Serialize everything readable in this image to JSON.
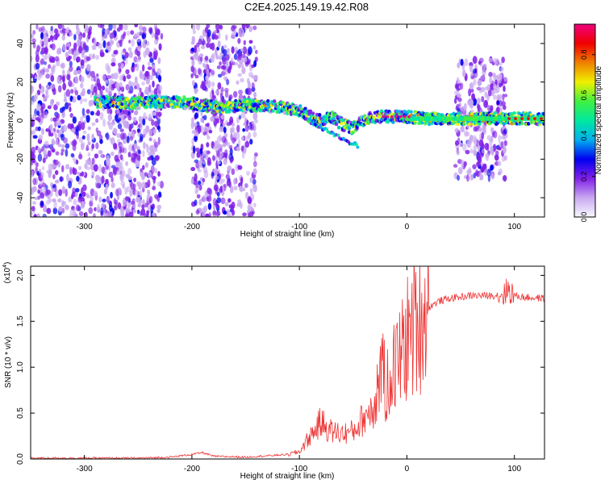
{
  "title": "C2E4.2025.149.19.42.R08",
  "chart_data": [
    {
      "type": "heatmap",
      "xlabel": "Height of straight line (km)",
      "ylabel": "Frequency (Hz)",
      "xlim": [
        -350,
        128
      ],
      "ylim": [
        -50,
        50
      ],
      "xticks": [
        -300,
        -200,
        -100,
        0,
        100
      ],
      "yticks": [
        -40,
        -20,
        0,
        20,
        40
      ],
      "colorbar": {
        "label": "Normalized spectral amplitude",
        "range": [
          0,
          0.95
        ],
        "ticks": [
          "0.0",
          "0.2",
          "0.4",
          "0.6",
          "0.8"
        ],
        "colormap": [
          "#f8f8ff",
          "#c8a8f0",
          "#8020e8",
          "#0000f0",
          "#00b0f0",
          "#00e8a0",
          "#40f040",
          "#f0f000",
          "#f08000",
          "#f00000",
          "#f00080"
        ]
      },
      "carrier_trace": {
        "x": [
          -290,
          -260,
          -230,
          -200,
          -180,
          -150,
          -120,
          -100,
          -90,
          -80,
          -70,
          -60,
          -50,
          -40,
          -30,
          -20,
          -10,
          0,
          20,
          50,
          90,
          128
        ],
        "y": [
          10,
          9,
          10,
          9,
          7,
          8,
          7,
          5,
          2,
          0,
          2,
          -2,
          -4,
          0,
          2,
          2,
          2,
          2,
          1,
          1,
          1,
          1
        ]
      },
      "secondary_trace": {
        "x": [
          -95,
          -85,
          -75,
          -65,
          -55,
          -45
        ],
        "y": [
          1,
          -2,
          -5,
          -8,
          -11,
          -13
        ]
      },
      "noise_regions": [
        [
          -350,
          -228
        ],
        [
          -200,
          -140
        ],
        [
          45,
          92
        ]
      ]
    },
    {
      "type": "line",
      "xlabel": "Height of straight line (km)",
      "ylabel": "SNR (10 * v/v)",
      "yscale_note": "(x10^4)",
      "color": "#ee3333",
      "xlim": [
        -350,
        128
      ],
      "ylim": [
        0,
        2.1
      ],
      "xticks": [
        -300,
        -200,
        -100,
        0,
        100
      ],
      "yticks": [
        "0.0",
        "0.5",
        "1.0",
        "1.5",
        "2.0"
      ],
      "series": [
        {
          "x": [
            -350,
            -300,
            -250,
            -220,
            -200,
            -190,
            -180,
            -150,
            -110,
            -100,
            -90,
            -80,
            -70,
            -60,
            -50,
            -40,
            -30,
            -25,
            -20,
            -15,
            -10,
            -5,
            0,
            10,
            20,
            30,
            40,
            60,
            80,
            90,
            95,
            100,
            110,
            128
          ],
          "y": [
            0.01,
            0.01,
            0.01,
            0.02,
            0.05,
            0.07,
            0.03,
            0.02,
            0.05,
            0.08,
            0.25,
            0.4,
            0.3,
            0.28,
            0.3,
            0.45,
            0.6,
            1.0,
            0.8,
            1.0,
            1.0,
            1.15,
            1.3,
            1.5,
            1.65,
            1.72,
            1.75,
            1.78,
            1.78,
            1.8,
            1.85,
            1.78,
            1.76,
            1.75
          ]
        }
      ]
    }
  ]
}
